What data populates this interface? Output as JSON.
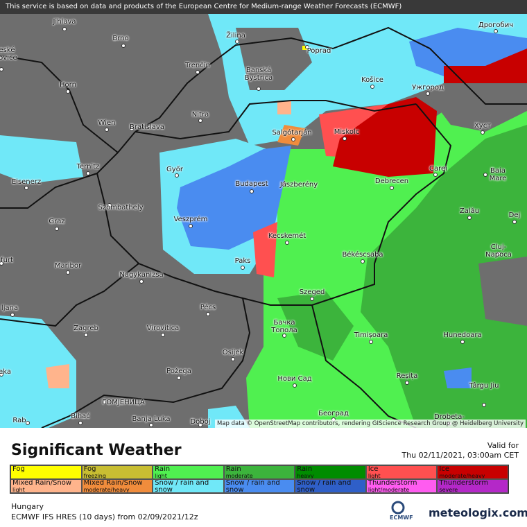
{
  "banner": "This service is based on data and products of the European Centre for Medium-range Weather Forecasts (ECMWF)",
  "attribution": "Map data © OpenStreetMap contributors, rendering GIScience Research Group @ Heidelberg University",
  "cities": [
    "Jihlava",
    "Brno",
    "Žilina",
    "Poprad",
    "Дрогобич",
    "Trenčín",
    "Banská Bystrica",
    "Horn",
    "Košice",
    "Ужгород",
    "Wien",
    "Bratislava",
    "Nitra",
    "Salgótarján",
    "Miskolc",
    "Хуст",
    "Ternitz",
    "Győr",
    "Carei",
    "Baia Mare",
    "Eisenerz",
    "Budapest",
    "Jászberény",
    "Debrecen",
    "Szombathely",
    "Zalău",
    "Graz",
    "Veszprém",
    "Dej",
    "Kecskemét",
    "Cluj-Napoca",
    "Békéscsaba",
    "Paks",
    "Maribor",
    "Nagykanizsa",
    "Szeged",
    "Pécs",
    "ljana",
    "Бачка Топола",
    "Zagreb",
    "Virovitica",
    "Timișoara",
    "Hunedoara",
    "Osijek",
    "Reșița",
    "Нови Сад",
    "Požega",
    "Târgu Jiu",
    "eka",
    "Београд",
    "ГОМЈЕНИЦА",
    "Bihać",
    "Banja Luka",
    "Doboj",
    "Rab",
    "Drobeta-",
    "furt",
    "eské jovice"
  ],
  "legend": {
    "title": "Significant Weather",
    "items": [
      {
        "label": "Fog",
        "color": "#ffff00"
      },
      {
        "label": "Fog",
        "sublabel": "freezing",
        "color": "#c8be32"
      },
      {
        "label": "Rain",
        "sublabel": "light",
        "color": "#50f050"
      },
      {
        "label": "Rain",
        "sublabel": "moderate",
        "color": "#3cb43c"
      },
      {
        "label": "Rain",
        "sublabel": "heavy",
        "color": "#008c00"
      },
      {
        "label": "Ice",
        "sublabel": "light",
        "color": "#ff5050"
      },
      {
        "label": "Ice",
        "sublabel": "moderate/heavy",
        "color": "#c80000"
      },
      {
        "label": "Mixed Rain/Snow",
        "sublabel": "light",
        "color": "#ffb48c"
      },
      {
        "label": "Mixed Rain/Snow",
        "sublabel": "moderate/heavy",
        "color": "#f08c3c"
      },
      {
        "label": "Snow / rain and snow",
        "sublabel": "light",
        "color": "#70e8f8"
      },
      {
        "label": "Snow / rain and snow",
        "sublabel": "moderate",
        "color": "#4a8cf0"
      },
      {
        "label": "Snow / rain and snow",
        "sublabel": "heavy",
        "color": "#2f5fc8"
      },
      {
        "label": "Thunderstorm",
        "sublabel": "light/moderate",
        "color": "#ff5cf0"
      },
      {
        "label": "Thunderstorm",
        "sublabel": "severe",
        "color": "#b428c8"
      }
    ]
  },
  "valid": {
    "label": "Valid for",
    "time": "Thu 02/11/2021, 03:00am CET"
  },
  "region": "Hungary",
  "model": "ECMWF IFS HRES (10 days)  from  02/09/2021/12z",
  "logos": {
    "ecmwf": "ECMWF",
    "meteologix": "meteologix.com"
  }
}
